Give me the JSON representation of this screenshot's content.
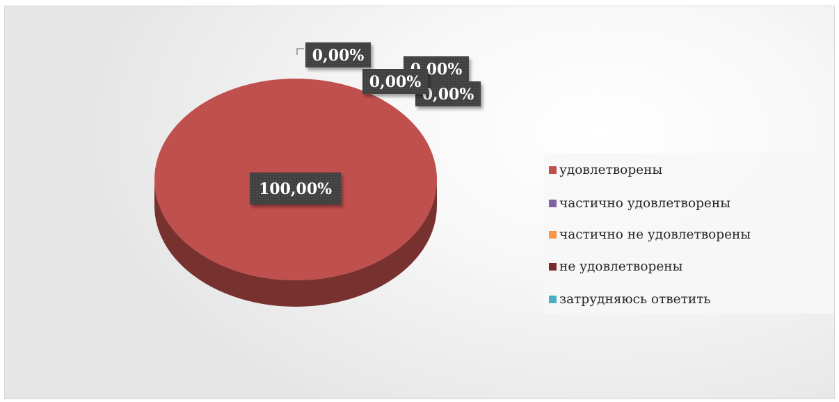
{
  "chart_data": {
    "type": "pie",
    "style": "3d",
    "categories": [
      "удовлетворены",
      "частично удовлетворены",
      "частично не удовлетворены",
      "не удовлетворены",
      "затрудняюсь ответить"
    ],
    "values": [
      100,
      0,
      0,
      0,
      0
    ],
    "data_labels": [
      "100,00%",
      "0,00%",
      "0,00%",
      "0,00%",
      "0,00%"
    ],
    "colors": [
      "#c0504d",
      "#8064a2",
      "#f79646",
      "#7f2a2a",
      "#4bacc6"
    ],
    "legend_position": "right",
    "title": ""
  }
}
